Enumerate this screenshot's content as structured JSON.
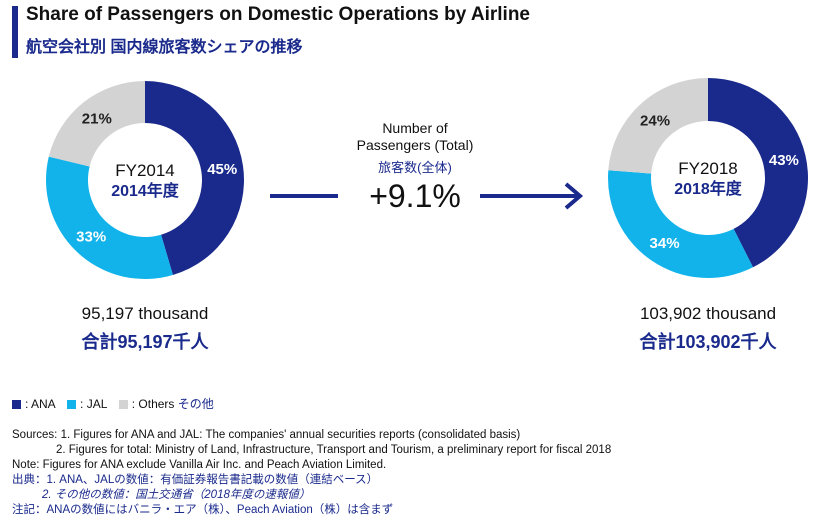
{
  "header": {
    "title_en": "Share of Passengers on Domestic Operations by Airline",
    "title_jp": "航空会社別 国内線旅客数シェアの推移"
  },
  "colors": {
    "ANA": "#1a2a8c",
    "JAL": "#12b3ea",
    "Others": "#d3d3d3",
    "accent": "#1a2a8c"
  },
  "chart_data": [
    {
      "type": "pie",
      "center_year": "FY2014",
      "center_year_jp": "2014年度",
      "categories": [
        "ANA",
        "JAL",
        "Others"
      ],
      "values": [
        45,
        33,
        21
      ],
      "value_labels": [
        "45%",
        "33%",
        "21%"
      ],
      "total_en": "95,197 thousand",
      "total_jp": "合計95,197千人"
    },
    {
      "type": "pie",
      "center_year": "FY2018",
      "center_year_jp": "2018年度",
      "categories": [
        "ANA",
        "JAL",
        "Others"
      ],
      "values": [
        43,
        34,
        24
      ],
      "value_labels": [
        "43%",
        "34%",
        "24%"
      ],
      "total_en": "103,902 thousand",
      "total_jp": "合計103,902千人"
    }
  ],
  "middle": {
    "label_line1": "Number of",
    "label_line2": "Passengers (Total)",
    "label_jp": "旅客数(全体)",
    "change": "+9.1%"
  },
  "legend": {
    "ana": ": ANA",
    "jal": ": JAL",
    "others": ": Others",
    "others_jp": "その他"
  },
  "notes": {
    "line1": "Sources:  1. Figures for ANA and JAL: The companies' annual securities reports (consolidated basis)",
    "line2": "2. Figures for total: Ministry of Land, Infrastructure, Transport and Tourism, a preliminary report for fiscal 2018",
    "line3": "Note: Figures for ANA exclude Vanilla Air Inc. and Peach Aviation Limited.",
    "line4": "出典：1. ANA、JALの数値：有価証券報告書記載の数値（連結ベース）",
    "line5": "2. その他の数値：国土交通省（2018年度の速報値）",
    "line6": "注記：ANAの数値にはバニラ・エア（株）、Peach Aviation（株）は含まず"
  }
}
